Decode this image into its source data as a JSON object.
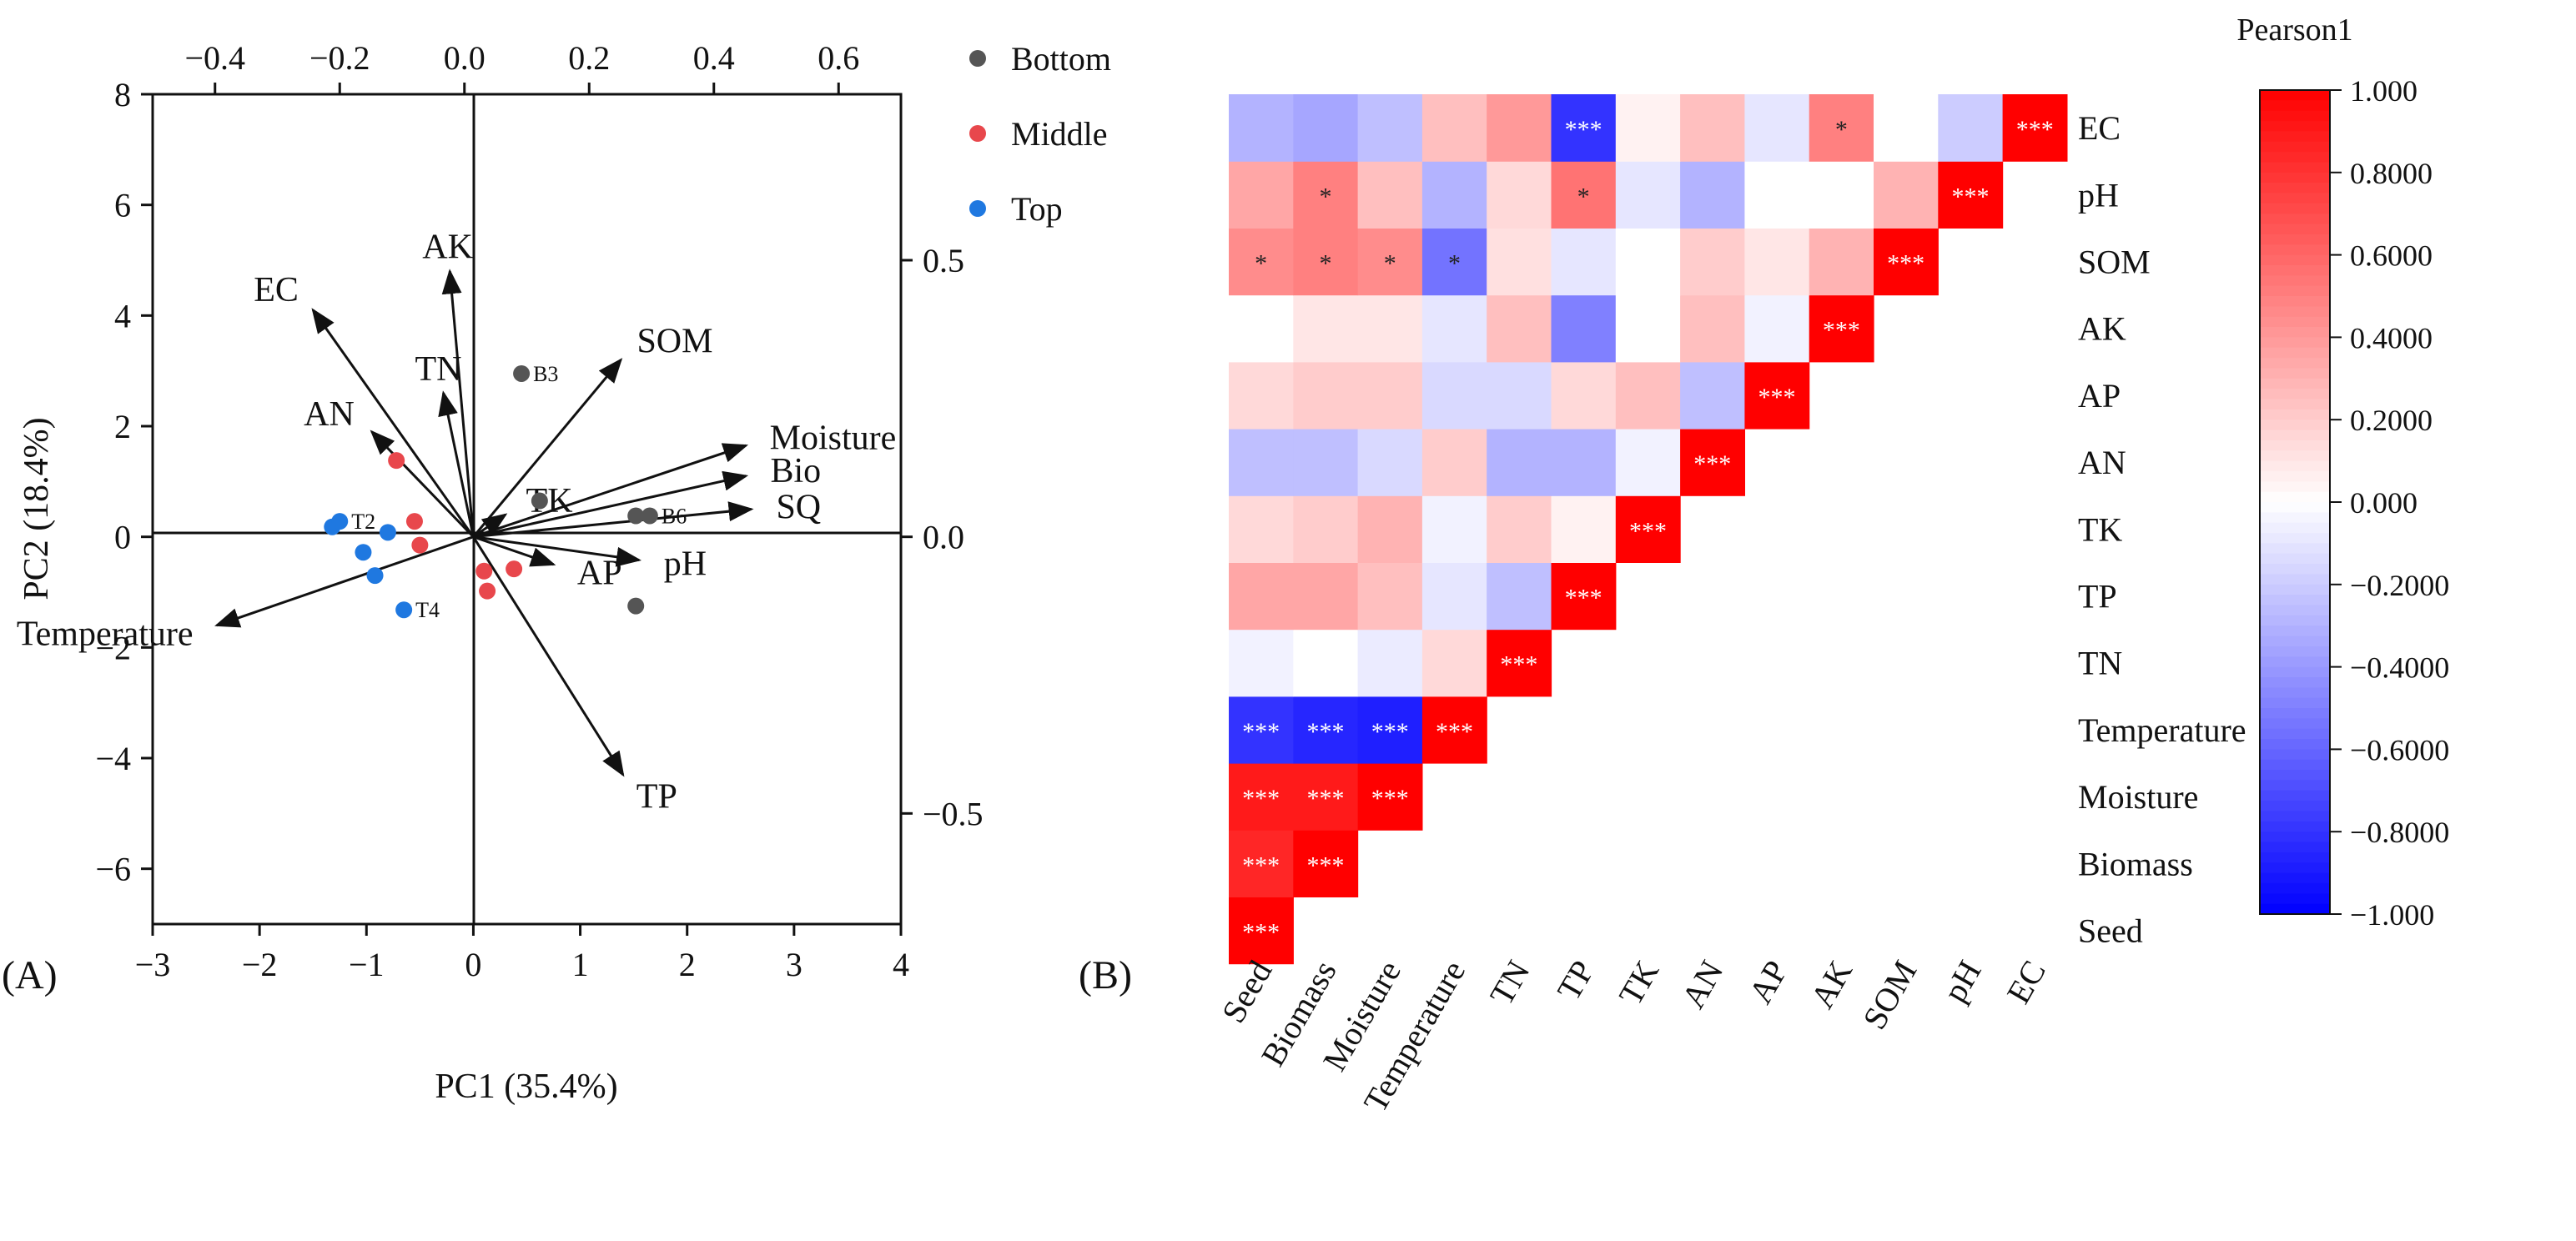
{
  "panels": {
    "a_label": "(A)",
    "b_label": "(B)"
  },
  "chart_data": [
    {
      "type": "scatter",
      "panel": "A",
      "xlabel": "PC1 (35.4%)",
      "ylabel": "PC2 (18.4%)",
      "xlim": [
        -3,
        4
      ],
      "ylim": [
        -7,
        8
      ],
      "xticks": [
        -3,
        -2,
        -1,
        0,
        1,
        2,
        3,
        4
      ],
      "yticks": [
        -6,
        -4,
        -2,
        0,
        2,
        4,
        6,
        8
      ],
      "secondary_xlim": [
        -0.5,
        0.7
      ],
      "secondary_xticks": [
        -0.4,
        -0.2,
        0.0,
        0.2,
        0.4,
        0.6
      ],
      "secondary_xtick_labels": [
        "−0.4",
        "−0.2",
        "0.0",
        "0.2",
        "0.4",
        "0.6"
      ],
      "secondary_ylim": [
        -0.7,
        0.8
      ],
      "secondary_yticks": [
        0.5,
        0.0,
        -0.5
      ],
      "secondary_ytick_labels": [
        "0.5",
        "0.0",
        "−0.5"
      ],
      "legend_position": "top-right outside",
      "series": [
        {
          "name": "Bottom",
          "color": "#555555",
          "points": [
            {
              "x": 0.45,
              "y": 2.95,
              "label": "B3"
            },
            {
              "x": 0.62,
              "y": 0.65,
              "label": ""
            },
            {
              "x": 1.52,
              "y": 0.38,
              "label": ""
            },
            {
              "x": 1.65,
              "y": 0.38,
              "label": "B6"
            },
            {
              "x": 1.52,
              "y": -1.25,
              "label": ""
            }
          ]
        },
        {
          "name": "Middle",
          "color": "#e8474c",
          "points": [
            {
              "x": -0.72,
              "y": 1.38,
              "label": ""
            },
            {
              "x": -0.55,
              "y": 0.28,
              "label": ""
            },
            {
              "x": -0.5,
              "y": -0.15,
              "label": ""
            },
            {
              "x": 0.1,
              "y": -0.62,
              "label": ""
            },
            {
              "x": 0.13,
              "y": -0.98,
              "label": ""
            },
            {
              "x": 0.38,
              "y": -0.58,
              "label": ""
            }
          ]
        },
        {
          "name": "Top",
          "color": "#1f78e0",
          "points": [
            {
              "x": -1.32,
              "y": 0.18,
              "label": ""
            },
            {
              "x": -1.25,
              "y": 0.28,
              "label": "T2"
            },
            {
              "x": -1.03,
              "y": -0.28,
              "label": ""
            },
            {
              "x": -0.8,
              "y": 0.08,
              "label": ""
            },
            {
              "x": -0.92,
              "y": -0.7,
              "label": ""
            },
            {
              "x": -0.65,
              "y": -1.32,
              "label": "T4"
            }
          ]
        }
      ],
      "vectors": [
        {
          "name": "EC",
          "x": -1.5,
          "y": 4.1
        },
        {
          "name": "AK",
          "x": -0.22,
          "y": 4.8
        },
        {
          "name": "TN",
          "x": -0.28,
          "y": 2.6
        },
        {
          "name": "AN",
          "x": -0.95,
          "y": 1.9
        },
        {
          "name": "SOM",
          "x": 1.38,
          "y": 3.2
        },
        {
          "name": "Moisture",
          "x": 2.55,
          "y": 1.65
        },
        {
          "name": "Bio",
          "x": 2.55,
          "y": 1.1
        },
        {
          "name": "SQ",
          "x": 2.6,
          "y": 0.5
        },
        {
          "name": "TK",
          "x": 0.3,
          "y": 0.4
        },
        {
          "name": "pH",
          "x": 1.55,
          "y": -0.42
        },
        {
          "name": "AP",
          "x": 0.75,
          "y": -0.5
        },
        {
          "name": "TP",
          "x": 1.4,
          "y": -4.3
        },
        {
          "name": "Temperature",
          "x": -2.4,
          "y": -1.6
        }
      ]
    },
    {
      "type": "heatmap",
      "panel": "B",
      "title": "Pearson1",
      "x_categories": [
        "Seed",
        "Biomass",
        "Moisture",
        "Temperature",
        "TN",
        "TP",
        "TK",
        "AN",
        "AP",
        "AK",
        "SOM",
        "pH",
        "EC"
      ],
      "y_categories_top_to_bottom": [
        "EC",
        "pH",
        "SOM",
        "AK",
        "AP",
        "AN",
        "TK",
        "TP",
        "TN",
        "Temperature",
        "Moisture",
        "Biomass",
        "Seed"
      ],
      "values_by_row": [
        [
          1.0
        ],
        [
          0.85,
          1.0
        ],
        [
          0.9,
          0.9,
          1.0
        ],
        [
          -0.8,
          -0.85,
          -0.88,
          1.0
        ],
        [
          -0.05,
          0.0,
          -0.08,
          0.15,
          1.0
        ],
        [
          0.35,
          0.35,
          0.25,
          -0.1,
          -0.25,
          1.0
        ],
        [
          0.15,
          0.2,
          0.3,
          -0.05,
          0.2,
          0.05,
          1.0
        ],
        [
          -0.25,
          -0.25,
          -0.15,
          0.2,
          -0.3,
          -0.3,
          -0.05,
          1.0
        ],
        [
          0.15,
          0.2,
          0.2,
          -0.15,
          -0.15,
          0.15,
          0.25,
          -0.25,
          1.0
        ],
        [
          0.0,
          0.1,
          0.1,
          -0.1,
          0.25,
          -0.5,
          0.0,
          0.25,
          -0.05,
          1.0
        ],
        [
          0.45,
          0.5,
          0.45,
          -0.55,
          0.12,
          -0.1,
          0.0,
          0.2,
          0.1,
          0.3,
          1.0
        ],
        [
          0.35,
          0.5,
          0.25,
          -0.3,
          0.15,
          0.55,
          -0.1,
          -0.3,
          0.0,
          0.0,
          0.3,
          1.0
        ],
        [
          -0.3,
          -0.35,
          -0.25,
          0.25,
          0.4,
          -0.8,
          0.05,
          0.25,
          -0.1,
          0.5,
          0.0,
          -0.2,
          1.0
        ]
      ],
      "significance_by_row": [
        [
          "***"
        ],
        [
          "***",
          "***"
        ],
        [
          "***",
          "***",
          "***"
        ],
        [
          "***",
          "***",
          "***",
          "***"
        ],
        [
          "",
          "",
          "",
          "",
          "***"
        ],
        [
          "",
          "",
          "",
          "",
          "",
          "***"
        ],
        [
          "",
          "",
          "",
          "",
          "",
          "",
          "***"
        ],
        [
          "",
          "",
          "",
          "",
          "",
          "",
          "",
          "***"
        ],
        [
          "",
          "",
          "",
          "",
          "",
          "",
          "",
          "",
          "***"
        ],
        [
          "",
          "",
          "",
          "",
          "",
          "",
          "",
          "",
          "",
          "***"
        ],
        [
          "*",
          "*",
          "*",
          "*",
          "",
          "",
          "",
          "",
          "",
          "",
          "***"
        ],
        [
          "",
          "*",
          "",
          "",
          "",
          "*",
          "",
          "",
          "",
          "",
          "",
          "***"
        ],
        [
          "",
          "",
          "",
          "",
          "",
          "***",
          "",
          "",
          "",
          "*",
          "",
          "",
          "***"
        ]
      ],
      "colorbar": {
        "min": -1.0,
        "max": 1.0,
        "colors": {
          "min": "#0000ff",
          "mid": "#ffffff",
          "max": "#ff0000"
        },
        "ticks": [
          "1.000",
          "0.8000",
          "0.6000",
          "0.4000",
          "0.2000",
          "0.000",
          "−0.2000",
          "−0.4000",
          "−0.6000",
          "−0.8000",
          "−1.000"
        ]
      }
    }
  ]
}
